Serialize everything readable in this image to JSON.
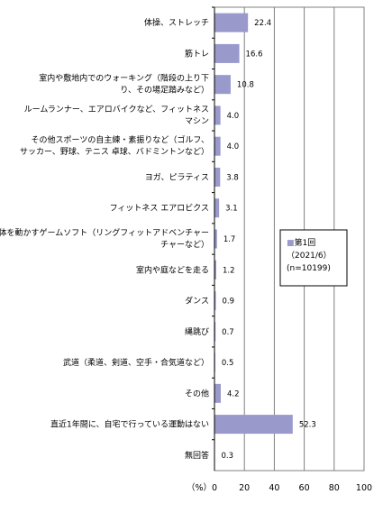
{
  "chart_data": {
    "type": "bar",
    "orientation": "horizontal",
    "title": "",
    "xlabel": "",
    "ylabel": "",
    "unit_label": "（%）",
    "xlim": [
      0,
      100
    ],
    "x_ticks": [
      0,
      20,
      40,
      60,
      80,
      100
    ],
    "grid": "vertical-major",
    "bar_color": "#9999cc",
    "categories": [
      [
        "体操、ストレッチ"
      ],
      [
        "筋トレ"
      ],
      [
        "室内や敷地内でのウォーキング（階段の上り下",
        "り、その場足踏みなど）"
      ],
      [
        "ルームランナー、エアロバイクなど、フィットネス",
        "マシン"
      ],
      [
        "その他スポーツの自主練・素振りなど（ゴルフ、",
        "サッカー、野球、テニス 卓球、バドミントンなど）"
      ],
      [
        "ヨガ、ピラティス"
      ],
      [
        "フィットネス エアロビクス"
      ],
      [
        "体を動かすゲームソフト（リングフィットアドベンチャー",
        "チャーなど）"
      ],
      [
        "室内や庭などを走る"
      ],
      [
        "ダンス"
      ],
      [
        "縄跳び"
      ],
      [
        "武道（柔道、剣道、空手・合気道など）"
      ],
      [
        "その他"
      ],
      [
        "直近1年間に、自宅で行っている運動はない"
      ],
      [
        "無回答"
      ]
    ],
    "values": [
      22.4,
      16.6,
      10.8,
      4.0,
      4.0,
      3.8,
      3.1,
      1.7,
      1.2,
      0.9,
      0.7,
      0.5,
      4.2,
      52.3,
      0.3
    ],
    "legend": {
      "placement": "right",
      "lines": [
        "■第1回",
        "（2021/6）",
        "(n=10199)"
      ]
    }
  }
}
